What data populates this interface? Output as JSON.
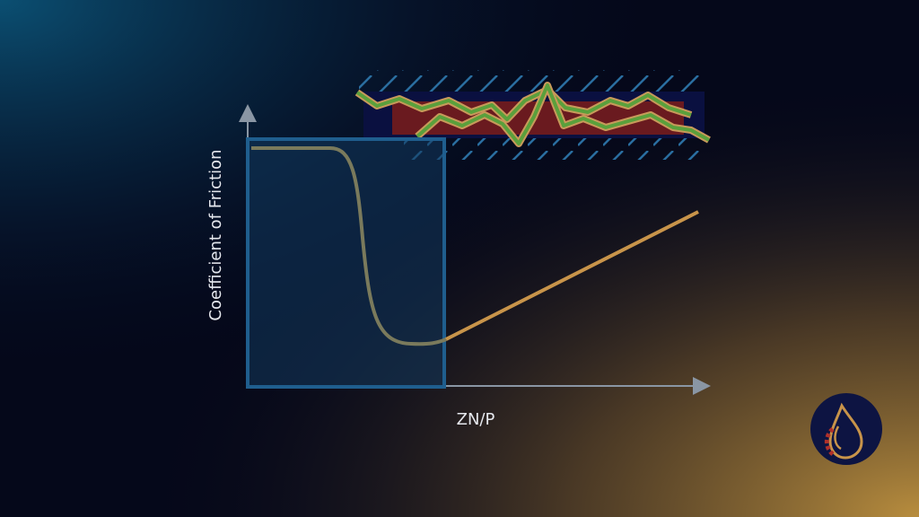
{
  "axes": {
    "y_label": "Coefficient of Friction",
    "x_label": "ZN/P"
  }
}
